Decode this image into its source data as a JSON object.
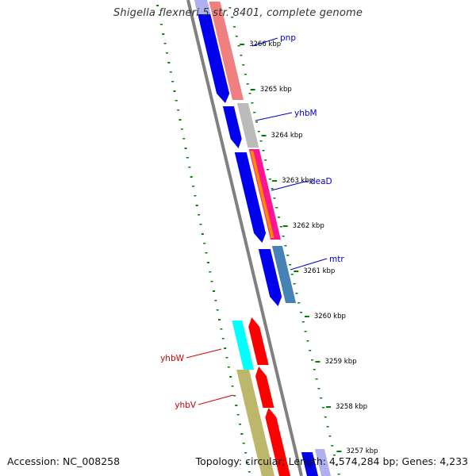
{
  "title": "Shigella flexneri 5 str. 8401, complete genome",
  "footer": {
    "accession": "Accession: NC_008258",
    "summary": "Topology: circular; Length: 4,574,284 bp; Genes: 4,233"
  },
  "ticks": [
    "3266 kbp",
    "3265 kbp",
    "3264 kbp",
    "3263 kbp",
    "3262 kbp",
    "3261 kbp",
    "3260 kbp",
    "3259 kbp",
    "3258 kbp",
    "3257 kbp"
  ],
  "gene_labels": [
    {
      "name": "pnp",
      "color": "#0000cc"
    },
    {
      "name": "yhbM",
      "color": "#0000cc"
    },
    {
      "name": "deaD",
      "color": "#0000cc"
    },
    {
      "name": "mtr",
      "color": "#0000cc"
    },
    {
      "name": "yhbW",
      "color": "#cc0000"
    },
    {
      "name": "yhbV",
      "color": "#cc0000"
    }
  ],
  "colors": {
    "backbone": "#808080",
    "forward_cds": "#0000ee",
    "reverse_cds": "#ff0000",
    "gc_dots": "#008000",
    "salmon": "#f08080",
    "grey": "#bbbbbb",
    "steelblue": "#4682b4",
    "cyan": "#00ffff",
    "olive": "#bdb76b",
    "lavender": "#b0b0f0",
    "magenta": "#ff1493",
    "orange": "#ff8c00"
  }
}
